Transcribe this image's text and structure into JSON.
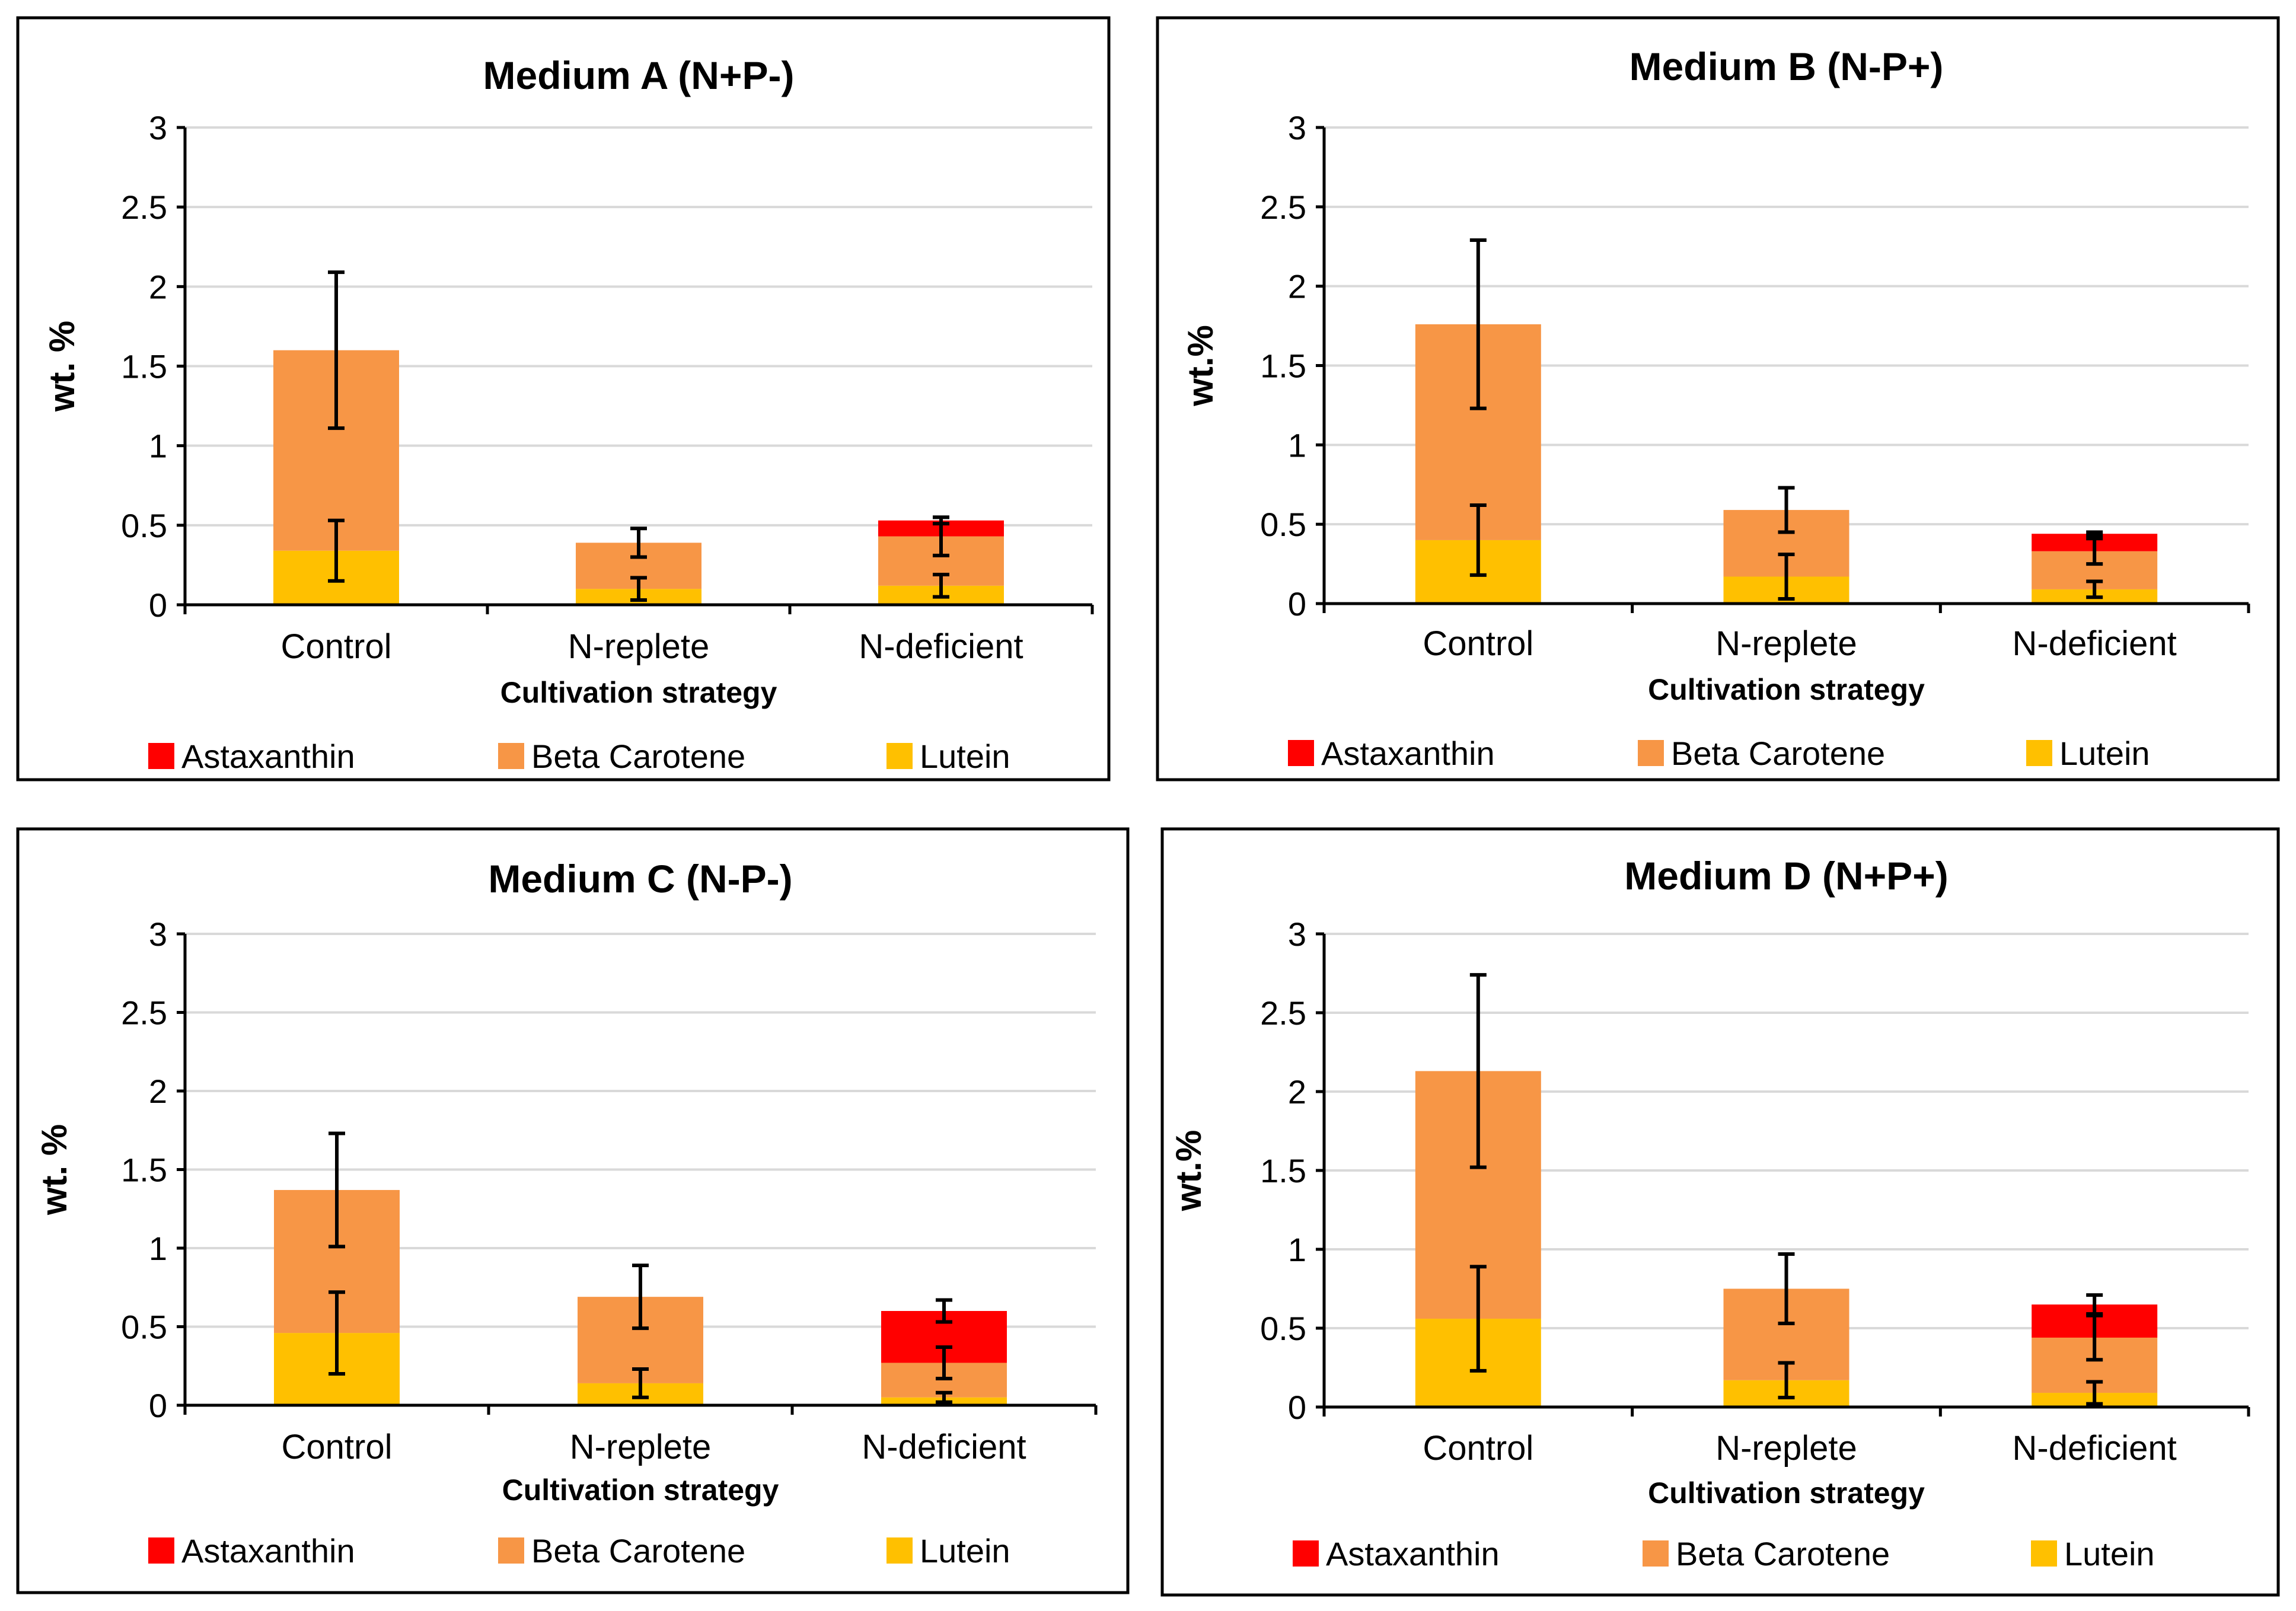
{
  "chart_data": [
    {
      "type": "bar",
      "stacked": true,
      "title": "Medium A (N+P-)",
      "xlabel": "Cultivation strategy",
      "ylabel": "wt. %",
      "ylim": [
        0,
        3
      ],
      "yticks": [
        "0",
        "0.5",
        "1",
        "1.5",
        "2",
        "2.5",
        "3"
      ],
      "categories": [
        "Control",
        "N-replete",
        "N-deficient"
      ],
      "series": [
        {
          "name": "Lutein",
          "color": "#FFC000",
          "values": [
            0.34,
            0.1,
            0.12
          ],
          "errors": [
            0.19,
            0.07,
            0.07
          ]
        },
        {
          "name": "Beta Carotene",
          "color": "#F79646",
          "values": [
            1.26,
            0.29,
            0.31
          ],
          "errors": [
            0.49,
            0.09,
            0.12
          ]
        },
        {
          "name": "Astaxanthin",
          "color": "#FF0000",
          "values": [
            0,
            0,
            0.1
          ],
          "errors": [
            0,
            0,
            0.02
          ]
        }
      ],
      "legend": [
        "Astaxanthin",
        "Beta Carotene",
        "Lutein"
      ]
    },
    {
      "type": "bar",
      "stacked": true,
      "title": "Medium B (N-P+)",
      "xlabel": "Cultivation strategy",
      "ylabel": "wt.%",
      "ylim": [
        0,
        3
      ],
      "yticks": [
        "0",
        "0.5",
        "1",
        "1.5",
        "2",
        "2.5",
        "3"
      ],
      "categories": [
        "Control",
        "N-replete",
        "N-deficient"
      ],
      "series": [
        {
          "name": "Lutein",
          "color": "#FFC000",
          "values": [
            0.4,
            0.17,
            0.09
          ],
          "errors": [
            0.22,
            0.14,
            0.05
          ]
        },
        {
          "name": "Beta Carotene",
          "color": "#F79646",
          "values": [
            1.36,
            0.42,
            0.24
          ],
          "errors": [
            0.53,
            0.14,
            0.08
          ]
        },
        {
          "name": "Astaxanthin",
          "color": "#FF0000",
          "values": [
            0,
            0,
            0.11
          ],
          "errors": [
            0,
            0,
            0.01
          ]
        }
      ],
      "legend": [
        "Astaxanthin",
        "Beta Carotene",
        "Lutein"
      ]
    },
    {
      "type": "bar",
      "stacked": true,
      "title": "Medium C (N-P-)",
      "xlabel": "Cultivation strategy",
      "ylabel": "wt. %",
      "ylim": [
        0,
        3
      ],
      "yticks": [
        "0",
        "0.5",
        "1",
        "1.5",
        "2",
        "2.5",
        "3"
      ],
      "categories": [
        "Control",
        "N-replete",
        "N-deficient"
      ],
      "series": [
        {
          "name": "Lutein",
          "color": "#FFC000",
          "values": [
            0.46,
            0.14,
            0.05
          ],
          "errors": [
            0.26,
            0.09,
            0.03
          ]
        },
        {
          "name": "Beta Carotene",
          "color": "#F79646",
          "values": [
            0.91,
            0.55,
            0.22
          ],
          "errors": [
            0.36,
            0.2,
            0.1
          ]
        },
        {
          "name": "Astaxanthin",
          "color": "#FF0000",
          "values": [
            0,
            0,
            0.33
          ],
          "errors": [
            0,
            0,
            0.07
          ]
        }
      ],
      "legend": [
        "Astaxanthin",
        "Beta Carotene",
        "Lutein"
      ]
    },
    {
      "type": "bar",
      "stacked": true,
      "title": "Medium D (N+P+)",
      "xlabel": "Cultivation strategy",
      "ylabel": "wt.%",
      "ylim": [
        0,
        3
      ],
      "yticks": [
        "0",
        "0.5",
        "1",
        "1.5",
        "2",
        "2.5",
        "3"
      ],
      "categories": [
        "Control",
        "N-replete",
        "N-deficient"
      ],
      "series": [
        {
          "name": "Lutein",
          "color": "#FFC000",
          "values": [
            0.56,
            0.17,
            0.09
          ],
          "errors": [
            0.33,
            0.11,
            0.07
          ]
        },
        {
          "name": "Beta Carotene",
          "color": "#F79646",
          "values": [
            1.57,
            0.58,
            0.35
          ],
          "errors": [
            0.61,
            0.22,
            0.14
          ]
        },
        {
          "name": "Astaxanthin",
          "color": "#FF0000",
          "values": [
            0,
            0,
            0.21
          ],
          "errors": [
            0,
            0,
            0.06
          ]
        }
      ],
      "legend": [
        "Astaxanthin",
        "Beta Carotene",
        "Lutein"
      ]
    }
  ]
}
